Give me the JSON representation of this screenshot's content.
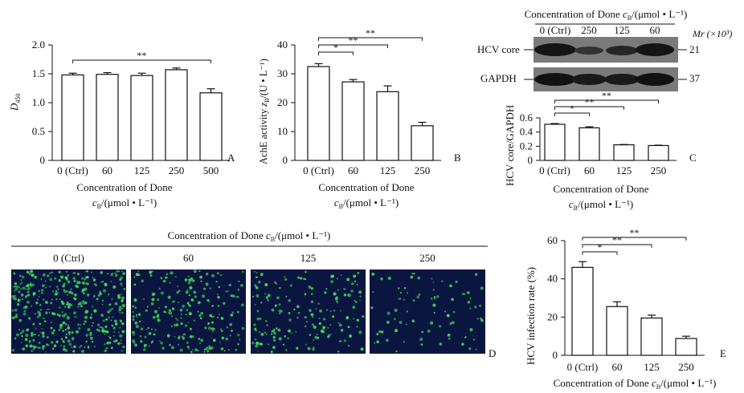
{
  "figure": {
    "panels_text": {
      "A": {
        "letter": "A",
        "ylabel": "D",
        "ylabel_sub": "450",
        "xlabel_line1": "Concentration of Done",
        "xlabel_line2_var": "c",
        "xlabel_line2_sub": "B",
        "xlabel_line2_rest": "/(μmol • L⁻¹)"
      },
      "B": {
        "letter": "B",
        "ylabel_pre": "AchE activity ",
        "ylabel_var": "z",
        "ylabel_sub": "B",
        "ylabel_post": "/(U • L⁻¹)",
        "xlabel_line1": "Concentration of Done",
        "xlabel_line2_var": "c",
        "xlabel_line2_sub": "B",
        "xlabel_line2_rest": "/(μmol • L⁻¹)"
      },
      "C": {
        "letter": "C",
        "blot_title_pre": "Concentration of Done ",
        "blot_title_var": "c",
        "blot_title_sub": "B",
        "blot_title_post": "/(μmol • L⁻¹)",
        "mr_label": "Mr (×10³)",
        "blot_rows": [
          "HCV core",
          "GAPDH"
        ],
        "blot_mr": [
          "21",
          "37"
        ],
        "ylabel": "HCV core/GAPDH",
        "xlabel_line1": "Concentration of Done",
        "xlabel_line2_var": "c",
        "xlabel_line2_sub": "B",
        "xlabel_line2_rest": "/(μmol • L⁻¹)"
      },
      "D": {
        "letter": "D",
        "title_pre": "Concentration of Done ",
        "title_var": "c",
        "title_sub": "B",
        "title_post": "/(μmol • L⁻¹)",
        "lanes": [
          "0 (Ctrl)",
          "60",
          "125",
          "250"
        ],
        "spot_density": [
          1.0,
          0.55,
          0.42,
          0.2
        ],
        "colors": {
          "background": "#0b1640",
          "spot": "#3fd85a"
        }
      },
      "E": {
        "letter": "E",
        "ylabel": "HCV infection rate (%)",
        "xlabel_pre": "Concentration of Done ",
        "xlabel_var": "c",
        "xlabel_sub": "B",
        "xlabel_post": "/(μmol • L⁻¹)"
      }
    }
  },
  "chart_data": [
    {
      "panel": "A",
      "type": "bar",
      "categories": [
        "0 (Ctrl)",
        "60",
        "125",
        "250",
        "500"
      ],
      "values": [
        1.48,
        1.49,
        1.47,
        1.57,
        1.17
      ],
      "errors": [
        0.03,
        0.03,
        0.04,
        0.03,
        0.07
      ],
      "ylim": [
        0,
        2.0
      ],
      "yticks": [
        "0",
        "0.5",
        "1.0",
        "1.5",
        "2.0"
      ],
      "ytick_values": [
        0,
        0.5,
        1.0,
        1.5,
        2.0
      ],
      "significance": [
        {
          "from": 0,
          "to": 4,
          "label": "**"
        }
      ]
    },
    {
      "panel": "B",
      "type": "bar",
      "categories": [
        "0 (Ctrl)",
        "60",
        "125",
        "250"
      ],
      "values": [
        32.5,
        27.2,
        23.8,
        12.0
      ],
      "errors": [
        1.0,
        0.8,
        2.0,
        1.2
      ],
      "ylim": [
        0,
        40
      ],
      "yticks": [
        "0",
        "10",
        "20",
        "30",
        "40"
      ],
      "ytick_values": [
        0,
        10,
        20,
        30,
        40
      ],
      "significance": [
        {
          "from": 0,
          "to": 1,
          "label": "*"
        },
        {
          "from": 0,
          "to": 2,
          "label": "**"
        },
        {
          "from": 0,
          "to": 3,
          "label": "**"
        }
      ]
    },
    {
      "panel": "C",
      "type": "bar",
      "categories": [
        "0 (Ctrl)",
        "60",
        "125",
        "250"
      ],
      "values": [
        0.51,
        0.46,
        0.22,
        0.21
      ],
      "errors": [
        0.01,
        0.015,
        0.005,
        0.005
      ],
      "ylim": [
        0,
        0.6
      ],
      "yticks": [
        "0",
        "0.2",
        "0.4",
        "0.6"
      ],
      "ytick_values": [
        0,
        0.2,
        0.4,
        0.6
      ],
      "blot_lanes": [
        "0 (Ctrl)",
        "250",
        "125",
        "60"
      ],
      "significance": [
        {
          "from": 0,
          "to": 1,
          "label": "*"
        },
        {
          "from": 0,
          "to": 2,
          "label": "**"
        },
        {
          "from": 0,
          "to": 3,
          "label": "**"
        }
      ]
    },
    {
      "panel": "E",
      "type": "bar",
      "categories": [
        "0 (Ctrl)",
        "60",
        "125",
        "250"
      ],
      "values": [
        46.0,
        25.5,
        19.5,
        8.8
      ],
      "errors": [
        3.0,
        2.5,
        1.5,
        1.2
      ],
      "ylim": [
        0,
        60
      ],
      "yticks": [
        "0",
        "20",
        "40",
        "60"
      ],
      "ytick_values": [
        0,
        20,
        40,
        60
      ],
      "significance": [
        {
          "from": 0,
          "to": 1,
          "label": "*"
        },
        {
          "from": 0,
          "to": 2,
          "label": "**"
        },
        {
          "from": 0,
          "to": 3,
          "label": "**"
        }
      ]
    }
  ]
}
